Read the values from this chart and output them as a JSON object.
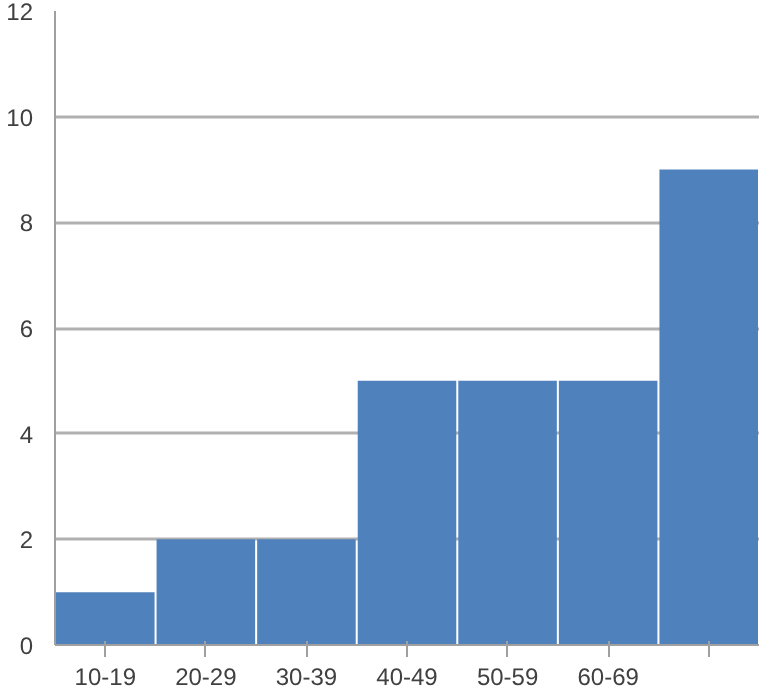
{
  "chart_data": {
    "type": "bar",
    "categories": [
      "10-19",
      "20-29",
      "30-39",
      "40-49",
      "50-59",
      "60-69",
      null
    ],
    "values": [
      1,
      2,
      2,
      5,
      5,
      5,
      9
    ],
    "color": "#4f81bd",
    "ylim": [
      0,
      12
    ],
    "yticks": [
      0,
      2,
      4,
      6,
      8,
      10,
      12
    ],
    "grid": "y"
  }
}
